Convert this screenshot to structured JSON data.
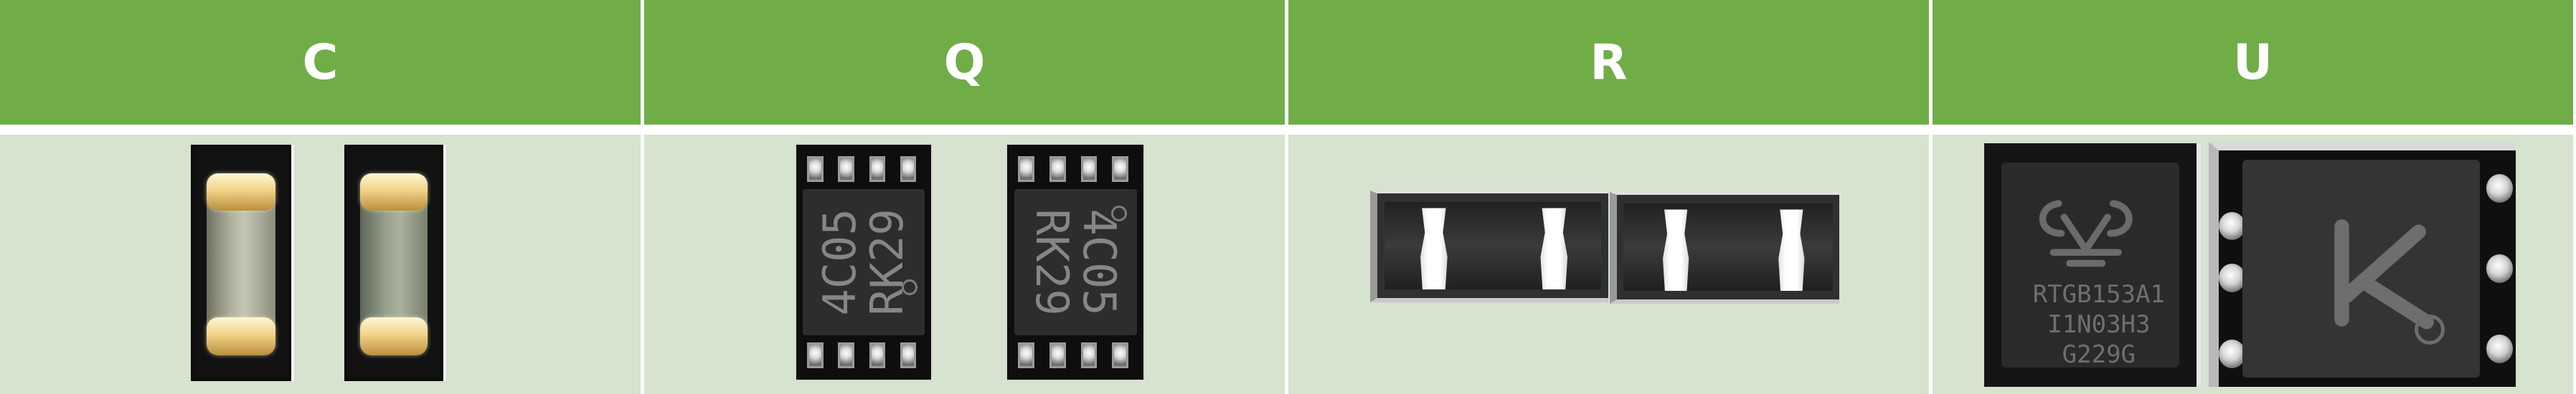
{
  "headers": [
    "C",
    "Q",
    "R",
    "U"
  ],
  "markings": {
    "q1": "4C05\nRK29",
    "q2": "4C05\nRK29",
    "u1": "RTGB153A1\nI1N03H3\nG229G"
  }
}
